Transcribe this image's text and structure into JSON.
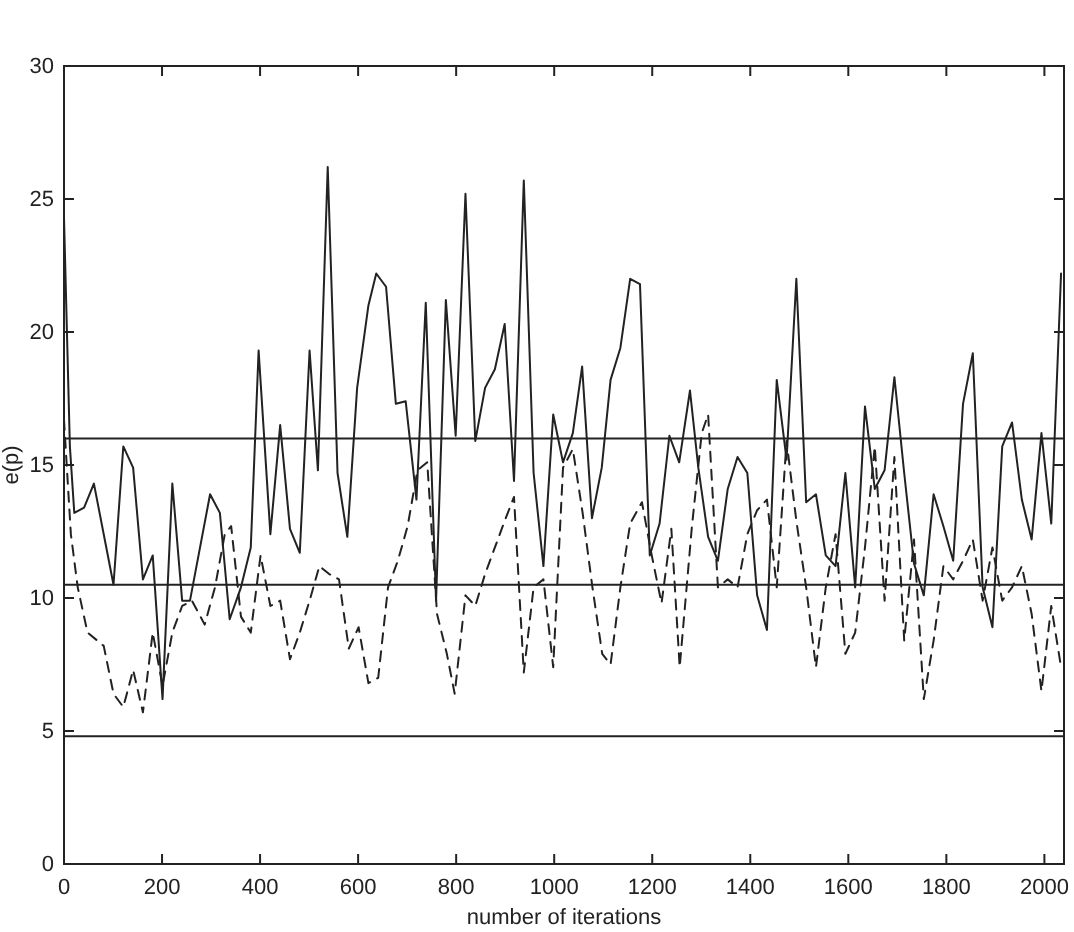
{
  "chart_data": {
    "type": "line",
    "xlabel": "number of iterations",
    "ylabel": "e(p)",
    "xlim": [
      0,
      2040
    ],
    "ylim": [
      0,
      30
    ],
    "xticks": [
      0,
      200,
      400,
      600,
      800,
      1000,
      1200,
      1400,
      1600,
      1800,
      2000
    ],
    "yticks": [
      0,
      5,
      10,
      15,
      20,
      25,
      30
    ],
    "ref_lines": [
      {
        "axis": "y",
        "value": 16
      },
      {
        "axis": "y",
        "value": 10.5
      },
      {
        "axis": "y",
        "value": 4.8
      }
    ],
    "series": [
      {
        "color": "#222222",
        "line_style": "solid",
        "x": [
          0,
          12,
          21,
          41,
          61,
          101,
          121,
          141,
          161,
          181,
          201,
          221,
          241,
          257,
          298,
          318,
          338,
          361,
          381,
          397,
          421,
          441,
          461,
          481,
          501,
          518,
          538,
          558,
          578,
          598,
          621,
          637,
          657,
          677,
          697,
          719,
          738,
          759,
          779,
          799,
          819,
          839,
          859,
          879,
          899,
          918,
          938,
          958,
          978,
          998,
          1018,
          1038,
          1057,
          1077,
          1097,
          1115,
          1135,
          1155,
          1175,
          1195,
          1215,
          1235,
          1255,
          1277,
          1294,
          1314,
          1334,
          1354,
          1374,
          1394,
          1414,
          1434,
          1454,
          1474,
          1494,
          1514,
          1534,
          1554,
          1574,
          1594,
          1614,
          1634,
          1654,
          1674,
          1694,
          1714,
          1734,
          1754,
          1774,
          1794,
          1814,
          1834,
          1854,
          1874,
          1894,
          1914,
          1934,
          1954,
          1974,
          1994,
          2014,
          2034
        ],
        "values": [
          24.3,
          15.7,
          13.2,
          13.4,
          14.3,
          10.5,
          15.7,
          14.9,
          10.7,
          11.6,
          6.2,
          14.3,
          9.9,
          9.9,
          13.9,
          13.2,
          9.2,
          10.4,
          11.9,
          19.3,
          12.4,
          16.5,
          12.6,
          11.7,
          19.3,
          14.8,
          26.2,
          14.7,
          12.3,
          17.9,
          21.0,
          22.2,
          21.7,
          17.3,
          17.4,
          13.7,
          21.1,
          9.9,
          21.2,
          16.1,
          25.2,
          15.9,
          17.9,
          18.6,
          20.3,
          14.4,
          25.7,
          14.7,
          11.2,
          16.9,
          15.1,
          16.2,
          18.7,
          13.0,
          14.9,
          18.2,
          19.4,
          22.0,
          21.8,
          11.6,
          12.8,
          16.1,
          15.1,
          17.8,
          14.9,
          12.3,
          11.4,
          14.1,
          15.3,
          14.7,
          10.1,
          8.8,
          18.2,
          15.2,
          22.0,
          13.6,
          13.9,
          11.6,
          11.2,
          14.7,
          10.4,
          17.2,
          14.1,
          14.8,
          18.3,
          14.7,
          11.3,
          10.1,
          13.9,
          12.7,
          11.4,
          17.3,
          19.2,
          10.4,
          8.9,
          15.7,
          16.6,
          13.7,
          12.2,
          16.2,
          12.8,
          22.2
        ]
      },
      {
        "color": "#222222",
        "line_style": "dashed",
        "x": [
          0,
          14,
          28,
          48,
          81,
          101,
          121,
          141,
          161,
          181,
          201,
          221,
          241,
          261,
          287,
          308,
          328,
          341,
          361,
          381,
          401,
          421,
          441,
          461,
          481,
          501,
          521,
          541,
          561,
          581,
          601,
          621,
          641,
          661,
          681,
          701,
          721,
          741,
          761,
          781,
          797,
          819,
          839,
          859,
          879,
          899,
          918,
          938,
          958,
          978,
          998,
          1018,
          1038,
          1058,
          1078,
          1098,
          1115,
          1135,
          1155,
          1179,
          1199,
          1219,
          1239,
          1256,
          1281,
          1301,
          1314,
          1334,
          1354,
          1374,
          1394,
          1414,
          1434,
          1454,
          1474,
          1494,
          1514,
          1534,
          1554,
          1574,
          1594,
          1614,
          1634,
          1654,
          1674,
          1694,
          1714,
          1734,
          1754,
          1774,
          1794,
          1814,
          1834,
          1854,
          1874,
          1894,
          1914,
          1934,
          1954,
          1974,
          1994,
          2014,
          2034
        ],
        "values": [
          16.7,
          12.4,
          10.4,
          8.7,
          8.2,
          6.4,
          5.9,
          7.3,
          5.7,
          8.7,
          6.7,
          8.7,
          9.7,
          9.9,
          9.0,
          10.4,
          12.4,
          12.7,
          9.3,
          8.7,
          11.6,
          9.7,
          9.9,
          7.7,
          8.7,
          9.9,
          11.2,
          10.9,
          10.7,
          8.1,
          8.9,
          6.8,
          7.0,
          10.4,
          11.4,
          12.7,
          14.8,
          15.1,
          9.4,
          7.9,
          6.4,
          10.1,
          9.7,
          10.9,
          11.9,
          12.9,
          13.8,
          7.2,
          10.4,
          10.7,
          7.4,
          14.9,
          15.6,
          13.2,
          10.4,
          7.9,
          7.5,
          10.4,
          12.8,
          13.6,
          11.6,
          9.8,
          12.6,
          7.4,
          12.7,
          16.2,
          16.9,
          10.4,
          10.7,
          10.4,
          12.4,
          13.3,
          13.7,
          10.4,
          15.9,
          12.9,
          10.4,
          7.4,
          10.4,
          12.4,
          7.9,
          8.7,
          11.9,
          15.7,
          9.9,
          15.3,
          8.4,
          12.2,
          6.2,
          8.4,
          11.2,
          10.7,
          11.4,
          12.2,
          9.9,
          11.9,
          9.9,
          10.4,
          11.2,
          9.4,
          6.5,
          9.7,
          7.4
        ]
      }
    ]
  }
}
